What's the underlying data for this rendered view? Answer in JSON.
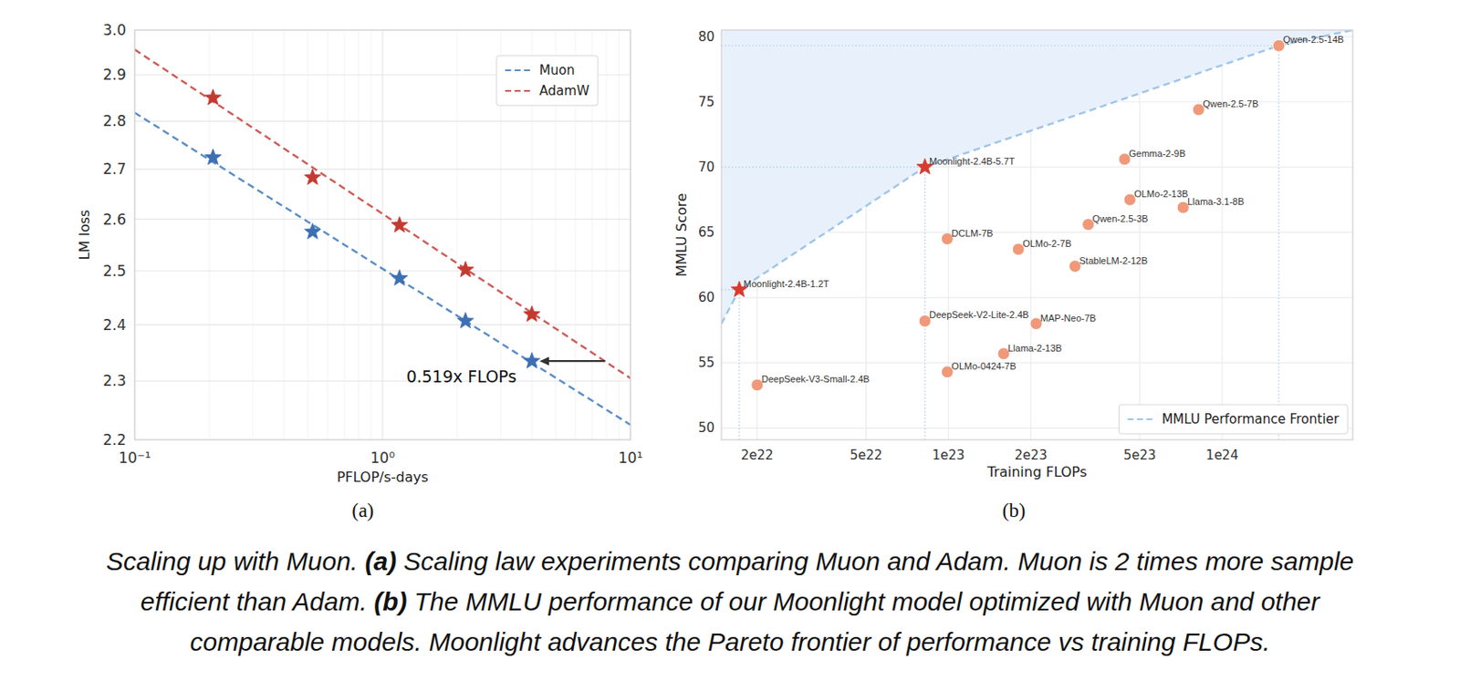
{
  "chart_data": [
    {
      "type": "scatter",
      "subtitle": "(a)",
      "x_label": "PFLOP/s-days",
      "y_label": "LM loss",
      "log": true,
      "grid": true,
      "legend": "upper right",
      "xlim": [
        0.1,
        10
      ],
      "ylim": [
        2.2,
        3.0
      ],
      "xticks": [
        {
          "value": 0.1,
          "label": "10⁻¹"
        },
        {
          "value": 1,
          "label": "10⁰"
        },
        {
          "value": 10,
          "label": "10¹"
        }
      ],
      "minor_xticks": [
        0.2,
        0.3,
        0.4,
        0.5,
        0.6,
        0.7,
        0.8,
        0.9,
        2,
        3,
        4,
        5,
        6,
        7,
        8,
        9
      ],
      "yticks": [
        2.2,
        2.3,
        2.4,
        2.5,
        2.6,
        2.7,
        2.8,
        2.9,
        {
          "value": 3,
          "label": "3.0"
        }
      ],
      "series": [
        {
          "name": "Muon",
          "type": "line",
          "line_style": "dashed",
          "color": "#5a8dc8",
          "x": [
            0.1,
            10
          ],
          "values": [
            2.818,
            2.225
          ]
        },
        {
          "name": "AdamW",
          "type": "line",
          "line_style": "dashed",
          "color": "#cd5c57",
          "x": [
            0.1,
            10
          ],
          "values": [
            2.956,
            2.305
          ]
        },
        {
          "type": "scatter",
          "marker": "star",
          "color": "#3d6fb3",
          "x": [
            0.207,
            0.522,
            1.17,
            2.16,
            4.0
          ],
          "values": [
            2.724,
            2.575,
            2.486,
            2.407,
            2.335
          ]
        },
        {
          "type": "scatter",
          "marker": "star",
          "color": "#c43a31",
          "x": [
            0.207,
            0.522,
            1.17,
            2.16,
            4.0
          ],
          "values": [
            2.85,
            2.683,
            2.588,
            2.502,
            2.419
          ]
        }
      ],
      "annotations": [
        {
          "text": "0.519x FLOPs",
          "x_from": 7.9,
          "x_to": 4.0,
          "y": 2.335,
          "text_x": 3.47,
          "text_y": 2.308
        }
      ]
    },
    {
      "type": "scatter",
      "subtitle": "(b)",
      "x_label": "Training FLOPs",
      "y_label": "MMLU Score",
      "log": "x",
      "grid": true,
      "legend": "lower right",
      "xlim": [
        1.48e+22,
        3e+24
      ],
      "ylim": [
        49.1,
        80.5
      ],
      "xticks": [
        {
          "value": 2e+22,
          "label": "2e22"
        },
        {
          "value": 5e+22,
          "label": "5e22"
        },
        {
          "value": 1e+23,
          "label": "1e23"
        },
        {
          "value": 2e+23,
          "label": "2e23"
        },
        {
          "value": 5e+23,
          "label": "5e23"
        },
        {
          "value": 1e+24,
          "label": "1e24"
        }
      ],
      "yticks": [
        50,
        55,
        60,
        65,
        70,
        75,
        80
      ],
      "series": [
        {
          "name": "MMLU Performance Frontier",
          "type": "line",
          "line_style": "dashed",
          "color": "#9fc5e8",
          "x": [
            1.48e+22,
            1.72e+22,
            8.2e+22,
            1.61e+24,
            3e+24
          ],
          "values": [
            58.0,
            60.6,
            70.0,
            79.3,
            80.5
          ]
        },
        {
          "type": "scatter",
          "marker": "star",
          "color": "#d83a2f",
          "labels": [
            "Moonlight-2.4B-1.2T",
            "Moonlight-2.4B-5.7T"
          ],
          "x": [
            1.72e+22,
            8.2e+22
          ],
          "values": [
            60.6,
            70.0
          ]
        },
        {
          "type": "scatter",
          "marker": "circle",
          "color": "#f0997a",
          "labels": [
            "Qwen-2.5-14B",
            "Qwen-2.5-7B",
            "Gemma-2-9B",
            "OLMo-2-13B",
            "Llama-3.1-8B",
            "Qwen-2.5-3B",
            "DCLM-7B",
            "OLMo-2-7B",
            "StableLM-2-12B",
            "DeepSeek-V2-Lite-2.4B",
            "MAP-Neo-7B",
            "Llama-2-13B",
            "OLMo-0424-7B",
            "DeepSeek-V3-Small-2.4B"
          ],
          "x": [
            1.61e+24,
            8.2e+23,
            4.4e+23,
            4.6e+23,
            7.2e+23,
            3.24e+23,
            9.9e+22,
            1.8e+23,
            2.9e+23,
            8.2e+22,
            2.09e+23,
            1.59e+23,
            9.9e+22,
            2e+22
          ],
          "values": [
            79.3,
            74.4,
            70.6,
            67.5,
            66.9,
            65.6,
            64.5,
            63.7,
            62.4,
            58.2,
            58.0,
            55.7,
            54.3,
            53.3
          ]
        }
      ]
    }
  ],
  "caption": [
    [
      "Scaling up with Muon. ",
      "(a)",
      " Scaling law experiments comparing Muon and Adam. Muon is 2 times more sample"
    ],
    [
      "efficient than Adam. ",
      "(b)",
      " The MMLU performance of our Moonlight model optimized with Muon and other"
    ],
    [
      "comparable models. Moonlight advances the Pareto frontier of performance vs training FLOPs."
    ]
  ]
}
